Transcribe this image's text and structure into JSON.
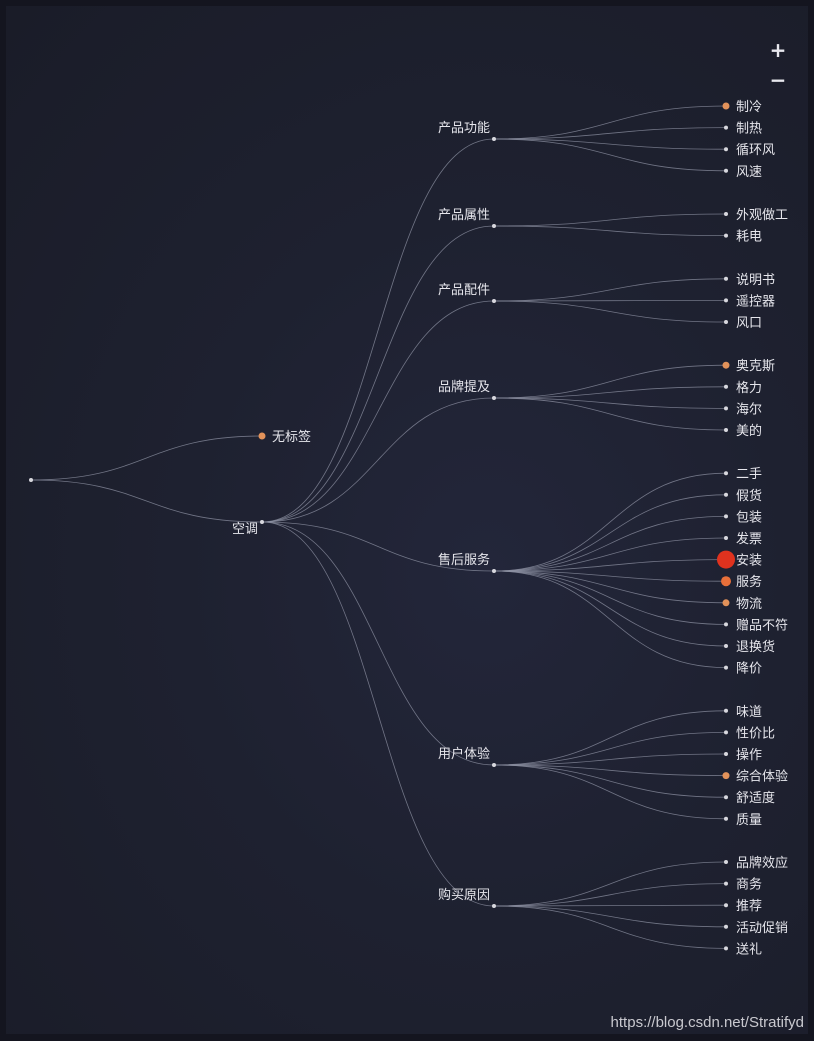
{
  "controls": {
    "zoom_in": "+",
    "zoom_out": "−"
  },
  "watermark": "https://blog.csdn.net/Stratifyd",
  "colors": {
    "link": "#8e91a3",
    "node_default": "#d8d8de",
    "node_warm": "#e2925a",
    "node_orange": "#e8703a",
    "node_red": "#e0321e"
  },
  "tree": {
    "root": {
      "label": "",
      "children": [
        {
          "label": "无标签",
          "status": "warm"
        },
        {
          "label": "空调",
          "children": [
            {
              "label": "产品功能",
              "children": [
                {
                  "label": "制冷",
                  "status": "warm"
                },
                {
                  "label": "制热"
                },
                {
                  "label": "循环风"
                },
                {
                  "label": "风速"
                }
              ]
            },
            {
              "label": "产品属性",
              "children": [
                {
                  "label": "外观做工"
                },
                {
                  "label": "耗电"
                }
              ]
            },
            {
              "label": "产品配件",
              "children": [
                {
                  "label": "说明书"
                },
                {
                  "label": "遥控器"
                },
                {
                  "label": "风口"
                }
              ]
            },
            {
              "label": "品牌提及",
              "children": [
                {
                  "label": "奥克斯",
                  "status": "warm"
                },
                {
                  "label": "格力"
                },
                {
                  "label": "海尔"
                },
                {
                  "label": "美的"
                }
              ]
            },
            {
              "label": "售后服务",
              "children": [
                {
                  "label": "二手"
                },
                {
                  "label": "假货"
                },
                {
                  "label": "包装"
                },
                {
                  "label": "发票"
                },
                {
                  "label": "安装",
                  "status": "red"
                },
                {
                  "label": "服务",
                  "status": "orange"
                },
                {
                  "label": "物流",
                  "status": "warm"
                },
                {
                  "label": "赠品不符"
                },
                {
                  "label": "退换货"
                },
                {
                  "label": "降价"
                }
              ]
            },
            {
              "label": "用户体验",
              "children": [
                {
                  "label": "味道"
                },
                {
                  "label": "性价比"
                },
                {
                  "label": "操作"
                },
                {
                  "label": "综合体验",
                  "status": "warm"
                },
                {
                  "label": "舒适度"
                },
                {
                  "label": "质量"
                }
              ]
            },
            {
              "label": "购买原因",
              "children": [
                {
                  "label": "品牌效应"
                },
                {
                  "label": "商务"
                },
                {
                  "label": "推荐"
                },
                {
                  "label": "活动促销"
                },
                {
                  "label": "送礼"
                }
              ]
            }
          ]
        }
      ]
    }
  }
}
